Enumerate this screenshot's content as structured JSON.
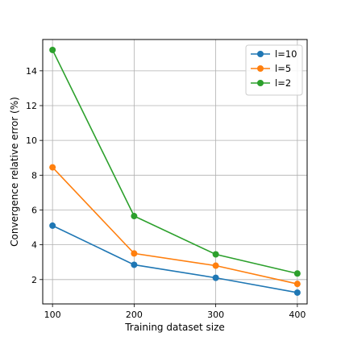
{
  "chart_data": {
    "type": "line",
    "title": "",
    "xlabel": "Training dataset size",
    "ylabel": "Convergence relative error (%)",
    "x": [
      100,
      200,
      300,
      400
    ],
    "xticks": [
      100,
      200,
      300,
      400
    ],
    "yticks": [
      2,
      4,
      6,
      8,
      10,
      12,
      14
    ],
    "xlim": [
      88,
      412
    ],
    "ylim": [
      0.6,
      15.8
    ],
    "grid": true,
    "legend_position": "top-right",
    "series": [
      {
        "name": "l=10",
        "color": "#1f77b4",
        "values": [
          5.1,
          2.85,
          2.1,
          1.25
        ]
      },
      {
        "name": "l=5",
        "color": "#ff7f0e",
        "values": [
          8.45,
          3.5,
          2.8,
          1.75
        ]
      },
      {
        "name": "l=2",
        "color": "#2ca02c",
        "values": [
          15.2,
          5.65,
          3.45,
          2.35
        ]
      }
    ]
  }
}
